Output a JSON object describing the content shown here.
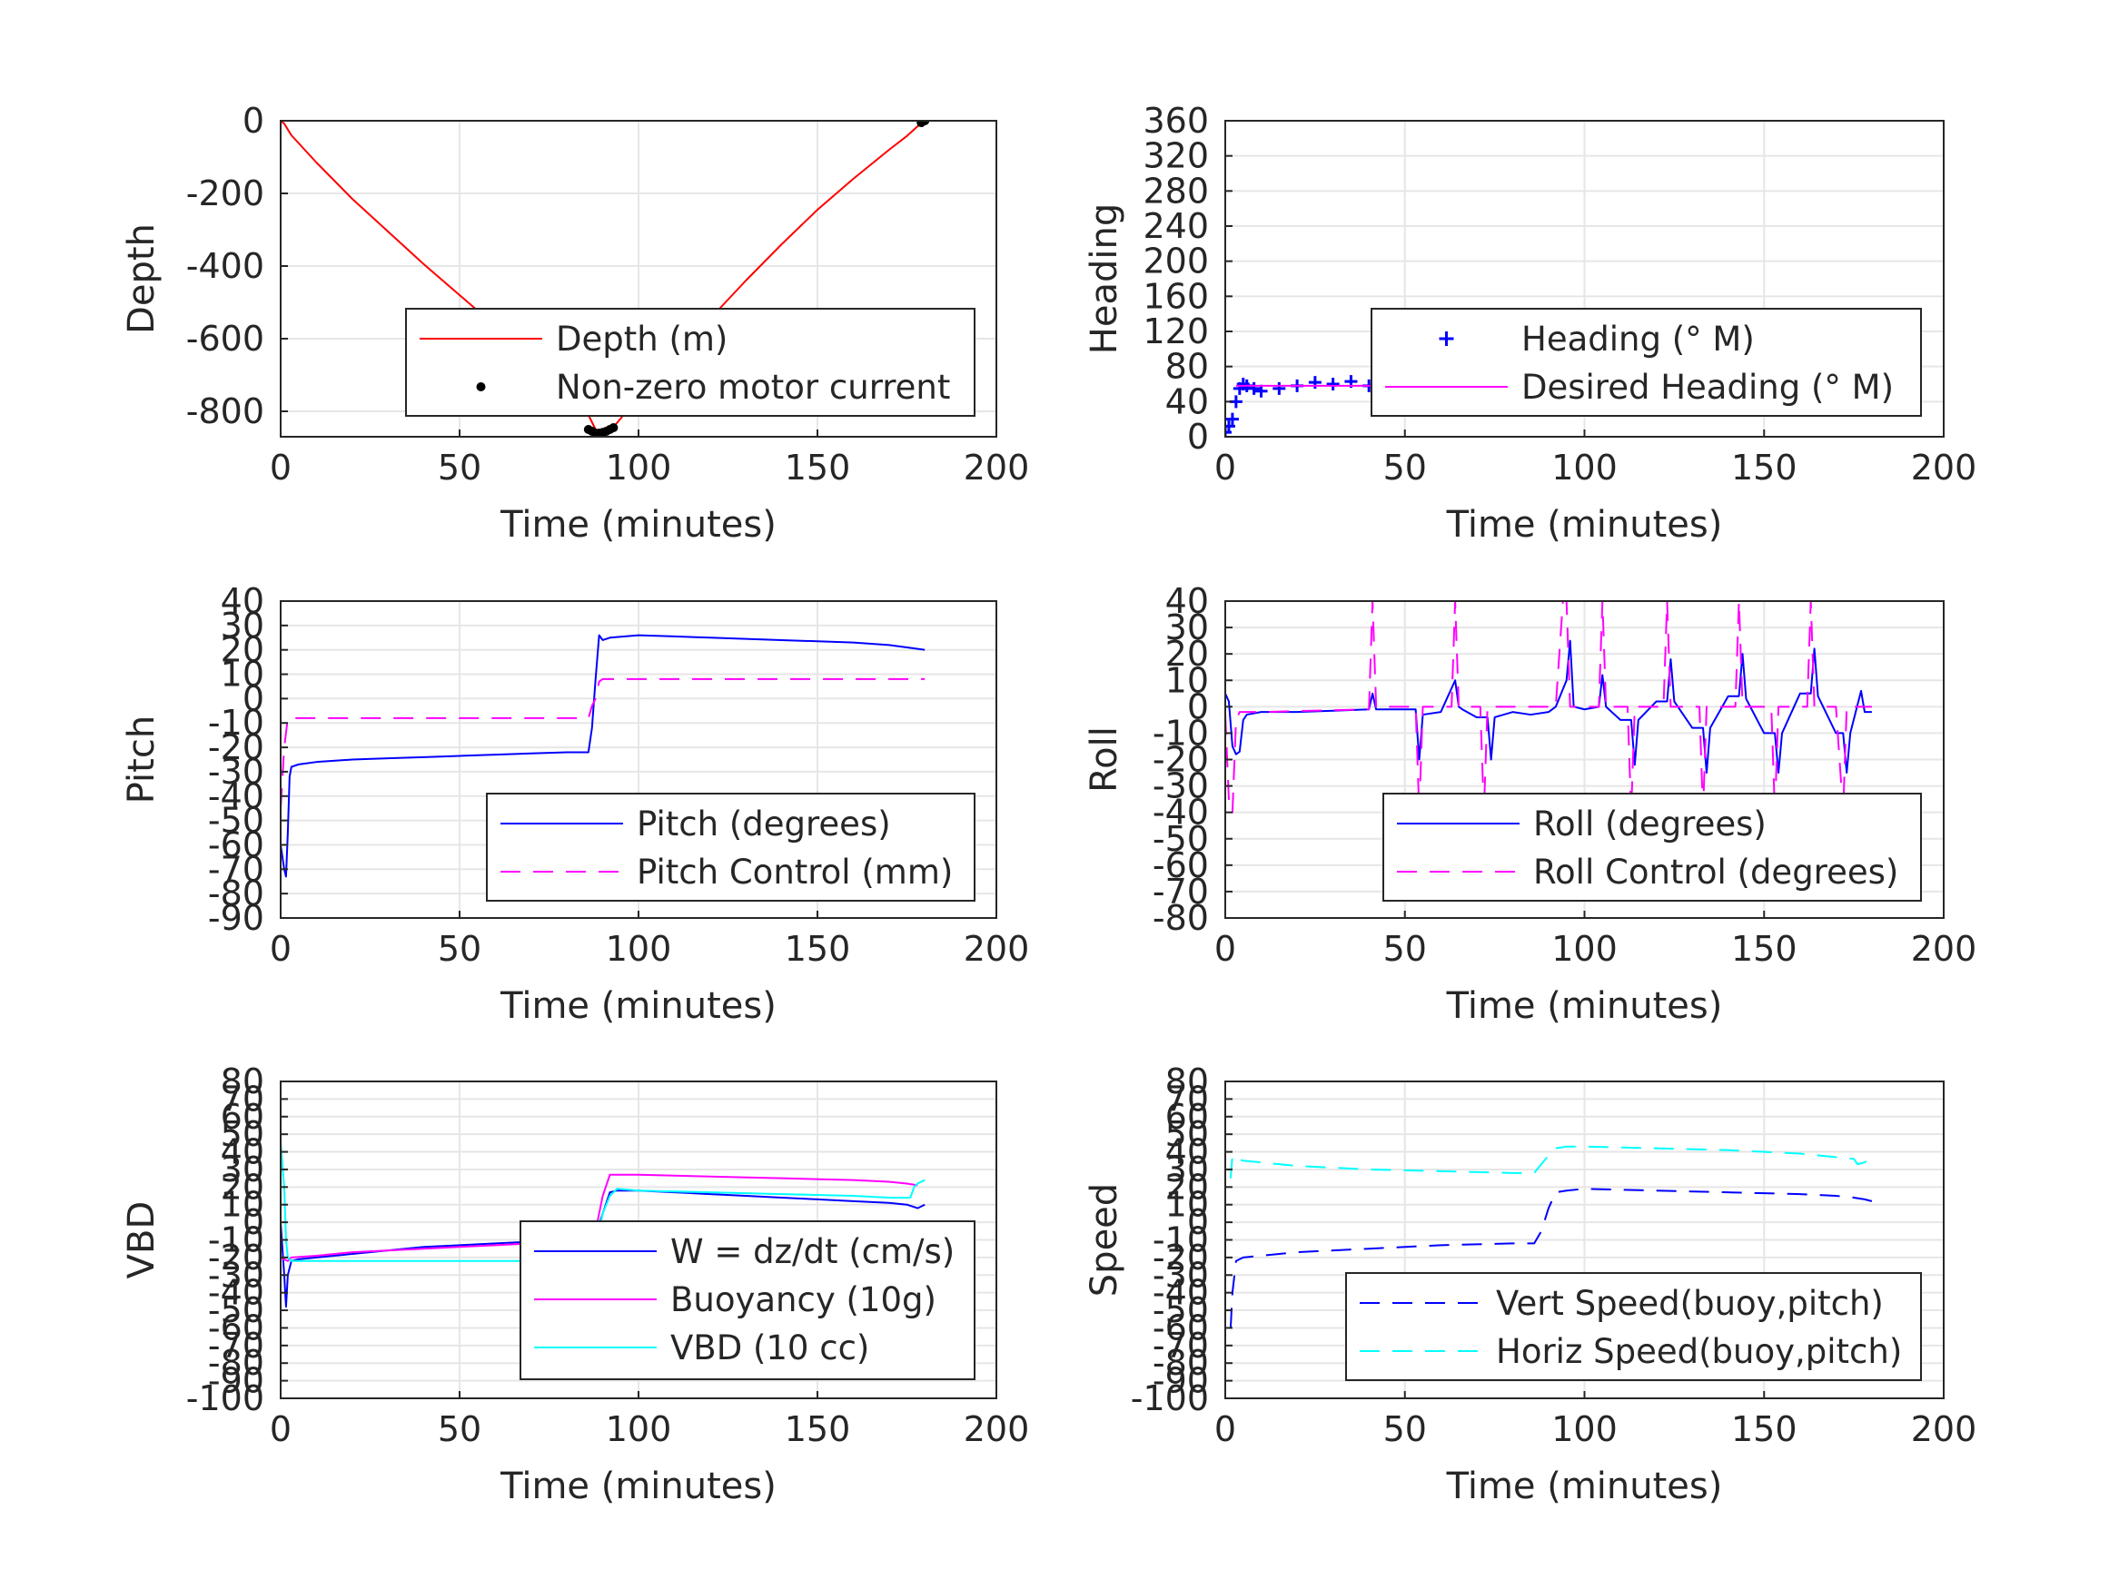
{
  "chart_data": [
    {
      "id": "depth",
      "type": "line",
      "xlabel": "Time (minutes)",
      "ylabel": "Depth",
      "xlim": [
        0,
        200
      ],
      "ylim": [
        -870,
        0
      ],
      "xticks": [
        0,
        50,
        100,
        150,
        200
      ],
      "yticks": [
        0,
        -200,
        -400,
        -600,
        -800
      ],
      "grid": true,
      "legend": "bottom-right",
      "series": [
        {
          "name": "Depth (m)",
          "color": "#ff0000",
          "style": "solid",
          "x": [
            0,
            1,
            3,
            10,
            20,
            30,
            40,
            50,
            60,
            70,
            80,
            85,
            88,
            90,
            92,
            95,
            100,
            110,
            120,
            130,
            140,
            150,
            160,
            170,
            175,
            178,
            180
          ],
          "y": [
            0,
            -8,
            -40,
            -115,
            -215,
            -305,
            -395,
            -480,
            -565,
            -650,
            -735,
            -790,
            -850,
            -860,
            -855,
            -820,
            -760,
            -650,
            -545,
            -440,
            -340,
            -245,
            -160,
            -80,
            -42,
            -15,
            -5
          ]
        },
        {
          "name": "Non-zero motor current",
          "color": "#000000",
          "style": "dot",
          "x": [
            86,
            87,
            88,
            89,
            90,
            91,
            92,
            93,
            179,
            180
          ],
          "y": [
            -850,
            -855,
            -860,
            -860,
            -858,
            -855,
            -850,
            -845,
            -5,
            0
          ]
        }
      ]
    },
    {
      "id": "heading",
      "type": "scatter",
      "xlabel": "Time (minutes)",
      "ylabel": "Heading",
      "xlim": [
        0,
        200
      ],
      "ylim": [
        0,
        360
      ],
      "xticks": [
        0,
        50,
        100,
        150,
        200
      ],
      "yticks": [
        0,
        40,
        80,
        120,
        160,
        200,
        240,
        280,
        320,
        360
      ],
      "grid": true,
      "legend": "bottom-right",
      "series": [
        {
          "name": "Heading (° M)",
          "color": "#0000ff",
          "style": "plus",
          "x": [
            0,
            1,
            2,
            3,
            4,
            5,
            6,
            8,
            10,
            15,
            20,
            25,
            30,
            35,
            40,
            45,
            50,
            55,
            60,
            65,
            70,
            75,
            80,
            85,
            90,
            95,
            100,
            105,
            110,
            115,
            120,
            125,
            130,
            135,
            140,
            145,
            150,
            155,
            160,
            165,
            170,
            175,
            180
          ],
          "y": [
            5,
            12,
            20,
            40,
            55,
            60,
            58,
            55,
            52,
            55,
            58,
            62,
            60,
            63,
            58,
            56,
            55,
            58,
            54,
            60,
            62,
            58,
            55,
            56,
            60,
            52,
            62,
            58,
            60,
            55,
            64,
            58,
            62,
            54,
            66,
            58,
            60,
            55,
            62,
            58,
            60,
            56,
            60
          ]
        },
        {
          "name": "Desired Heading (° M)",
          "color": "#ff00ff",
          "style": "solid",
          "x": [
            3,
            180
          ],
          "y": [
            58,
            58
          ]
        }
      ]
    },
    {
      "id": "pitch",
      "type": "line",
      "xlabel": "Time (minutes)",
      "ylabel": "Pitch",
      "xlim": [
        0,
        200
      ],
      "ylim": [
        -90,
        40
      ],
      "xticks": [
        0,
        50,
        100,
        150,
        200
      ],
      "yticks": [
        40,
        30,
        20,
        10,
        0,
        -10,
        -20,
        -30,
        -40,
        -50,
        -60,
        -70,
        -80,
        -90
      ],
      "grid": true,
      "legend": "bottom-right",
      "series": [
        {
          "name": "Pitch (degrees)",
          "color": "#0000ff",
          "style": "solid",
          "x": [
            0,
            1,
            1.5,
            2,
            2.5,
            3,
            5,
            10,
            20,
            30,
            40,
            50,
            60,
            70,
            80,
            86,
            87,
            88,
            89,
            90,
            92,
            100,
            110,
            120,
            130,
            140,
            150,
            160,
            170,
            175,
            180
          ],
          "y": [
            -60,
            -70,
            -73,
            -55,
            -32,
            -28,
            -27,
            -26,
            -25,
            -24.5,
            -24,
            -23.5,
            -23,
            -22.5,
            -22,
            -22,
            -12,
            8,
            26,
            24,
            25,
            26,
            25.5,
            25,
            24.5,
            24,
            23.5,
            23,
            22,
            21,
            20
          ]
        },
        {
          "name": "Pitch Control (mm)",
          "color": "#ff00ff",
          "style": "dashed",
          "x": [
            0,
            1,
            2,
            3,
            20,
            40,
            60,
            80,
            86,
            87,
            88,
            89,
            90,
            100,
            120,
            140,
            160,
            180
          ],
          "y": [
            -45,
            -20,
            -8,
            -8,
            -8,
            -8,
            -8,
            -8,
            -8,
            -3,
            0,
            7,
            8,
            8,
            8,
            8,
            8,
            8
          ]
        }
      ]
    },
    {
      "id": "roll",
      "type": "line",
      "xlabel": "Time (minutes)",
      "ylabel": "Roll",
      "xlim": [
        0,
        200
      ],
      "ylim": [
        -80,
        40
      ],
      "xticks": [
        0,
        50,
        100,
        150,
        200
      ],
      "yticks": [
        40,
        30,
        20,
        10,
        0,
        -10,
        -20,
        -30,
        -40,
        -50,
        -60,
        -70,
        -80
      ],
      "grid": true,
      "legend": "bottom-right",
      "series": [
        {
          "name": "Roll (degrees)",
          "color": "#0000ff",
          "style": "solid",
          "x": [
            0,
            1,
            2,
            3,
            4,
            5,
            6,
            10,
            20,
            30,
            40,
            41,
            42,
            50,
            53,
            54,
            55,
            60,
            64,
            65,
            66,
            70,
            73,
            74,
            75,
            80,
            85,
            90,
            92,
            95,
            96,
            97,
            100,
            104,
            105,
            106,
            110,
            113,
            114,
            115,
            120,
            123,
            124,
            125,
            130,
            133,
            134,
            135,
            140,
            143,
            144,
            145,
            150,
            153,
            154,
            155,
            160,
            163,
            164,
            165,
            170,
            172,
            173,
            174,
            177,
            178,
            180
          ],
          "y": [
            5,
            2,
            -15,
            -18,
            -17,
            -5,
            -3,
            -2,
            -2,
            -1.5,
            -1,
            5,
            -1,
            -1,
            -1,
            -20,
            -3,
            -2,
            10,
            0,
            -1,
            -4,
            -4,
            -20,
            -4,
            -2,
            -3,
            -2,
            0,
            10,
            25,
            0,
            -1,
            0,
            12,
            0,
            -5,
            -5,
            -22,
            -5,
            2,
            2,
            18,
            2,
            -8,
            -8,
            -25,
            -8,
            4,
            4,
            20,
            3,
            -10,
            -10,
            -25,
            -10,
            5,
            5,
            22,
            4,
            -10,
            -10,
            -25,
            -10,
            6,
            -2,
            -2
          ]
        },
        {
          "name": "Roll Control (degrees)",
          "color": "#ff00ff",
          "style": "dashed",
          "x": [
            0,
            1,
            2,
            3,
            4,
            5,
            10,
            40,
            41,
            42,
            50,
            53,
            54,
            55,
            63,
            64,
            65,
            71,
            72,
            73,
            80,
            90,
            92,
            94,
            95,
            96,
            97,
            104,
            105,
            106,
            112,
            113,
            114,
            122,
            123,
            124,
            132,
            133,
            134,
            142,
            143,
            144,
            152,
            153,
            154,
            162,
            163,
            164,
            170,
            172,
            173,
            174,
            178,
            180
          ],
          "y": [
            -3,
            -35,
            -40,
            -5,
            -2,
            -2,
            -2,
            -1,
            40,
            0,
            0,
            0,
            -40,
            0,
            0,
            40,
            0,
            0,
            -40,
            0,
            0,
            0,
            0,
            40,
            40,
            0,
            0,
            0,
            40,
            0,
            0,
            -40,
            0,
            0,
            40,
            0,
            0,
            -40,
            0,
            0,
            40,
            0,
            0,
            -40,
            0,
            0,
            40,
            0,
            0,
            -40,
            0,
            0,
            0,
            0
          ]
        }
      ]
    },
    {
      "id": "vbd",
      "type": "line",
      "xlabel": "Time (minutes)",
      "ylabel": "VBD",
      "xlim": [
        0,
        200
      ],
      "ylim": [
        -100,
        80
      ],
      "xticks": [
        0,
        50,
        100,
        150,
        200
      ],
      "yticks": [
        80,
        70,
        60,
        50,
        40,
        30,
        20,
        10,
        0,
        -10,
        -20,
        -30,
        -40,
        -50,
        -60,
        -70,
        -80,
        -90,
        -100
      ],
      "grid": true,
      "legend": "bottom-right",
      "series": [
        {
          "name": "W = dz/dt (cm/s)",
          "color": "#0000ff",
          "style": "solid",
          "x": [
            0,
            1,
            1.5,
            2,
            3,
            5,
            10,
            20,
            30,
            40,
            50,
            60,
            70,
            80,
            86,
            88,
            90,
            92,
            94,
            100,
            110,
            120,
            130,
            140,
            150,
            160,
            170,
            175,
            178,
            180
          ],
          "y": [
            0,
            -30,
            -48,
            -30,
            -22,
            -21,
            -20,
            -18,
            -16,
            -14,
            -13,
            -12,
            -11,
            -10,
            -10,
            -8,
            5,
            17,
            18,
            18,
            17,
            16,
            15,
            14,
            13,
            12,
            11,
            10,
            8,
            10
          ]
        },
        {
          "name": "Buoyancy (10g)",
          "color": "#ff00ff",
          "style": "solid",
          "x": [
            0,
            2,
            3,
            10,
            20,
            40,
            60,
            80,
            86,
            88,
            90,
            92,
            100,
            120,
            140,
            160,
            170,
            175,
            178
          ],
          "y": [
            -20,
            -22,
            -20,
            -19,
            -17,
            -15,
            -13,
            -11,
            -11,
            -5,
            15,
            27,
            27,
            26,
            25,
            24,
            23,
            22,
            21
          ]
        },
        {
          "name": "VBD (10 cc)",
          "color": "#00ffff",
          "style": "solid",
          "x": [
            0,
            1,
            1.5,
            2,
            3,
            10,
            40,
            60,
            80,
            86,
            88,
            90,
            92,
            94,
            100,
            120,
            140,
            160,
            170,
            176,
            177,
            178,
            180
          ],
          "y": [
            45,
            20,
            -10,
            -20,
            -22,
            -22,
            -22,
            -22,
            -22,
            -22,
            -15,
            5,
            15,
            19,
            18,
            17,
            16,
            15,
            14,
            14,
            20,
            22,
            24
          ]
        }
      ]
    },
    {
      "id": "speed",
      "type": "line",
      "xlabel": "Time (minutes)",
      "ylabel": "Speed",
      "xlim": [
        0,
        200
      ],
      "ylim": [
        -100,
        80
      ],
      "xticks": [
        0,
        50,
        100,
        150,
        200
      ],
      "yticks": [
        80,
        70,
        60,
        50,
        40,
        30,
        20,
        10,
        0,
        -10,
        -20,
        -30,
        -40,
        -50,
        -60,
        -70,
        -80,
        -90,
        -100
      ],
      "grid": true,
      "legend": "bottom-right",
      "series": [
        {
          "name": "Vert Speed(buoy,pitch)",
          "color": "#0000ff",
          "style": "dashed",
          "x": [
            1.5,
            2,
            3,
            5,
            10,
            20,
            40,
            60,
            80,
            86,
            88,
            90,
            92,
            95,
            100,
            120,
            140,
            160,
            170,
            175,
            178,
            180
          ],
          "y": [
            -60,
            -40,
            -22,
            -20,
            -19,
            -17,
            -15,
            -13,
            -12,
            -12,
            -5,
            8,
            17,
            18,
            19,
            18,
            17,
            16,
            15,
            14,
            13,
            12
          ]
        },
        {
          "name": "Horiz Speed(buoy,pitch)",
          "color": "#00ffff",
          "style": "dashed",
          "x": [
            1.5,
            2,
            3,
            5,
            10,
            20,
            40,
            60,
            80,
            86,
            88,
            90,
            92,
            95,
            100,
            120,
            140,
            160,
            170,
            175,
            176,
            178,
            180
          ],
          "y": [
            25,
            38,
            36,
            35,
            34,
            32,
            30,
            29,
            28,
            28,
            33,
            38,
            42,
            43,
            43,
            42,
            41,
            39,
            37,
            36,
            33,
            34,
            37
          ]
        }
      ]
    }
  ]
}
